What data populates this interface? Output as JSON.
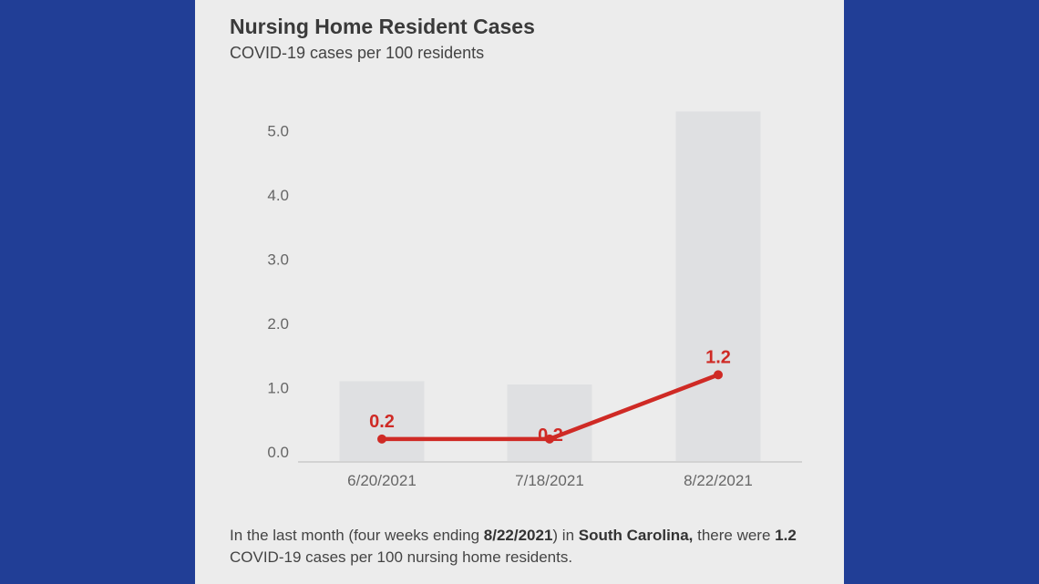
{
  "panel": {
    "title": "Nursing Home Resident Cases",
    "subtitle": "COVID-19 cases per 100 residents"
  },
  "footnote": {
    "p1": "In the last month (four weeks ending ",
    "date": "8/22/2021",
    "p2": ") in ",
    "state": "South Carolina,",
    "p3": " there were ",
    "value": "1.2",
    "p4": " COVID-19 cases per 100 nursing home residents."
  },
  "colors": {
    "background": "#213e96",
    "panel": "#ececec",
    "bar": "#dfe0e2",
    "line": "#cf2a25",
    "axis_text": "#666666"
  },
  "chart_data": {
    "type": "line",
    "categories": [
      "6/20/2021",
      "7/18/2021",
      "8/22/2021"
    ],
    "ylim": [
      0,
      5
    ],
    "yticks": [
      "0.0",
      "1.0",
      "2.0",
      "3.0",
      "4.0",
      "5.0"
    ],
    "background_bars": [
      1.1,
      1.05,
      5.3
    ],
    "series": [
      {
        "values": [
          0.2,
          0.2,
          1.2
        ],
        "labels": [
          "0.2",
          "0.2",
          "1.2"
        ]
      }
    ],
    "grid": false
  }
}
